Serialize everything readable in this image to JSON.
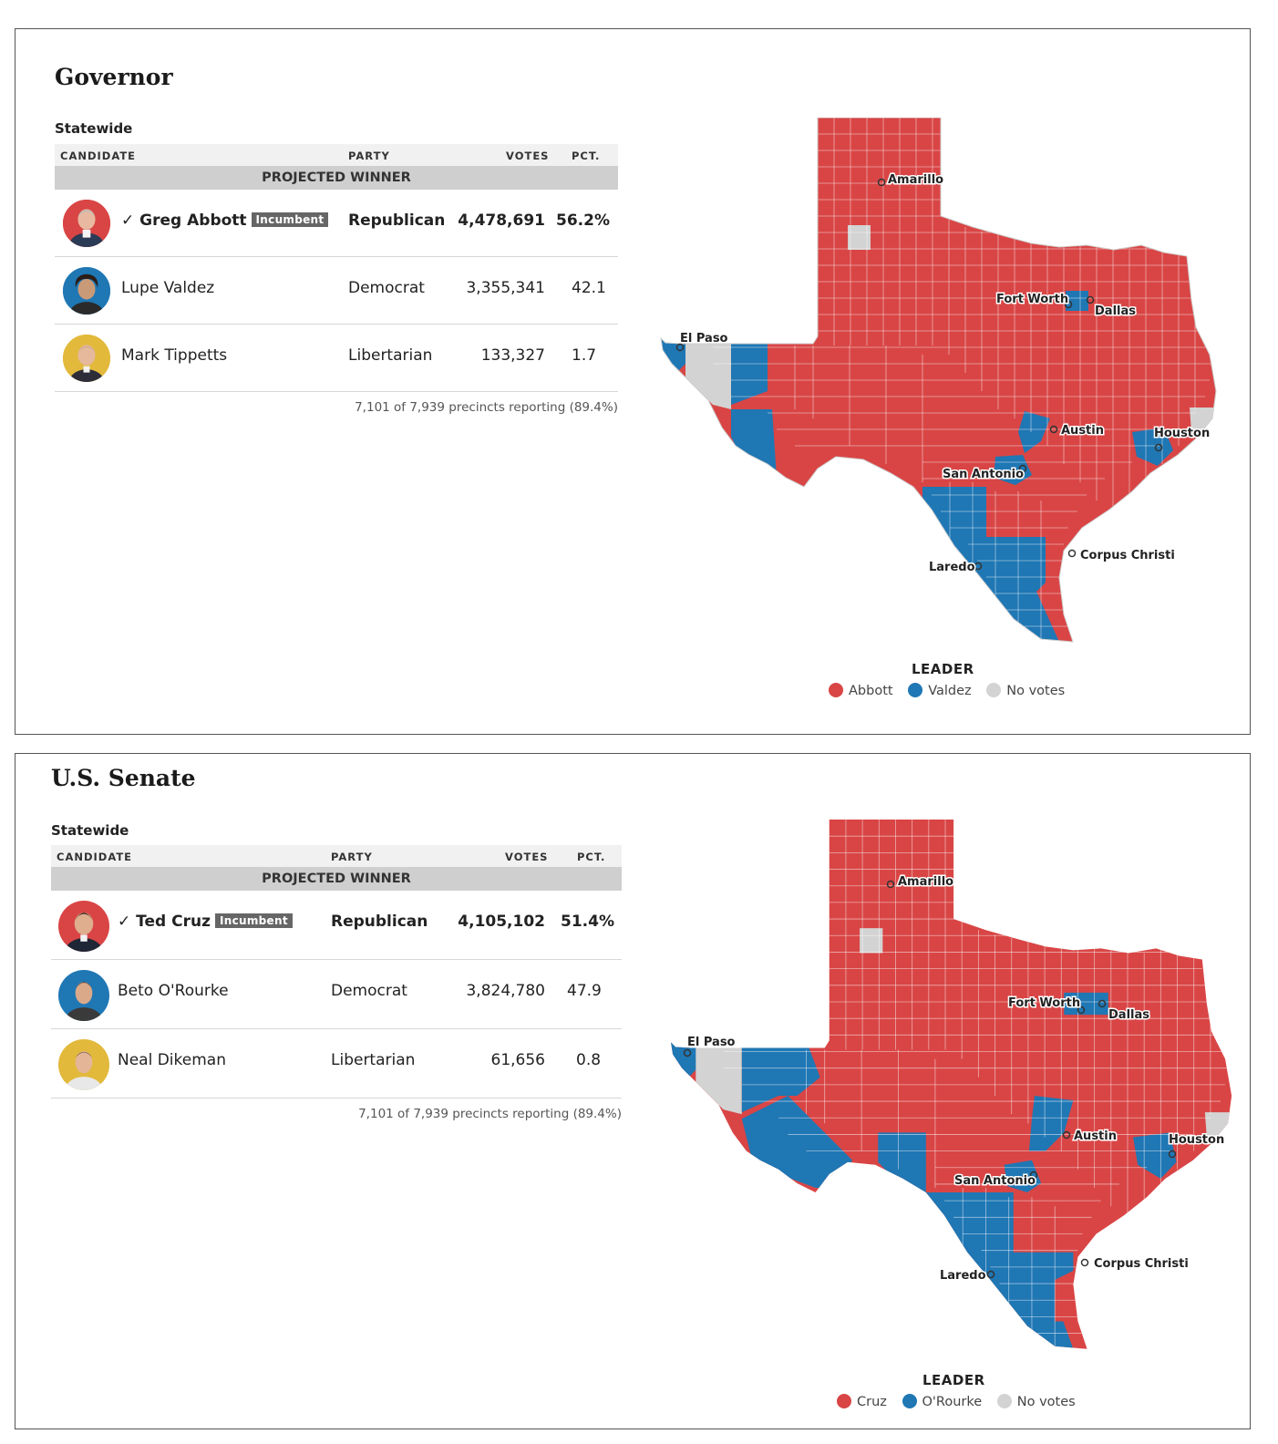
{
  "colors": {
    "republican": "#d94545",
    "democrat": "#1f77b4",
    "libertarian": "#e2b93b",
    "no_votes": "#d3d3d3"
  },
  "headers": {
    "candidate": "CANDIDATE",
    "party": "PARTY",
    "votes": "VOTES",
    "pct": "PCT."
  },
  "governor": {
    "title": "Governor",
    "scope": "Statewide",
    "projected": "PROJECTED WINNER",
    "candidates": [
      {
        "name": "✓ Greg Abbott",
        "badge": "Incumbent",
        "party": "Republican",
        "votes": "4,478,691",
        "pct": "56.2%"
      },
      {
        "name": "Lupe Valdez",
        "party": "Democrat",
        "votes": "3,355,341",
        "pct": "42.1"
      },
      {
        "name": "Mark Tippetts",
        "party": "Libertarian",
        "votes": "133,327",
        "pct": "1.7"
      }
    ],
    "reporting": "7,101 of 7,939 precincts reporting (89.4%)",
    "map": {
      "cities": [
        "Amarillo",
        "Fort Worth",
        "Dallas",
        "El Paso",
        "Austin",
        "Houston",
        "San Antonio",
        "Corpus Christi",
        "Laredo"
      ],
      "legend_title": "LEADER",
      "legend": [
        "Abbott",
        "Valdez",
        "No votes"
      ]
    }
  },
  "senate": {
    "title": "U.S. Senate",
    "scope": "Statewide",
    "projected": "PROJECTED WINNER",
    "candidates": [
      {
        "name": "✓ Ted Cruz",
        "badge": "Incumbent",
        "party": "Republican",
        "votes": "4,105,102",
        "pct": "51.4%"
      },
      {
        "name": "Beto O'Rourke",
        "party": "Democrat",
        "votes": "3,824,780",
        "pct": "47.9"
      },
      {
        "name": "Neal Dikeman",
        "party": "Libertarian",
        "votes": "61,656",
        "pct": "0.8"
      }
    ],
    "reporting": "7,101 of 7,939 precincts reporting (89.4%)",
    "map": {
      "cities": [
        "Amarillo",
        "Fort Worth",
        "Dallas",
        "El Paso",
        "Austin",
        "Houston",
        "San Antonio",
        "Corpus Christi",
        "Laredo"
      ],
      "legend_title": "LEADER",
      "legend": [
        "Cruz",
        "O'Rourke",
        "No votes"
      ]
    }
  }
}
